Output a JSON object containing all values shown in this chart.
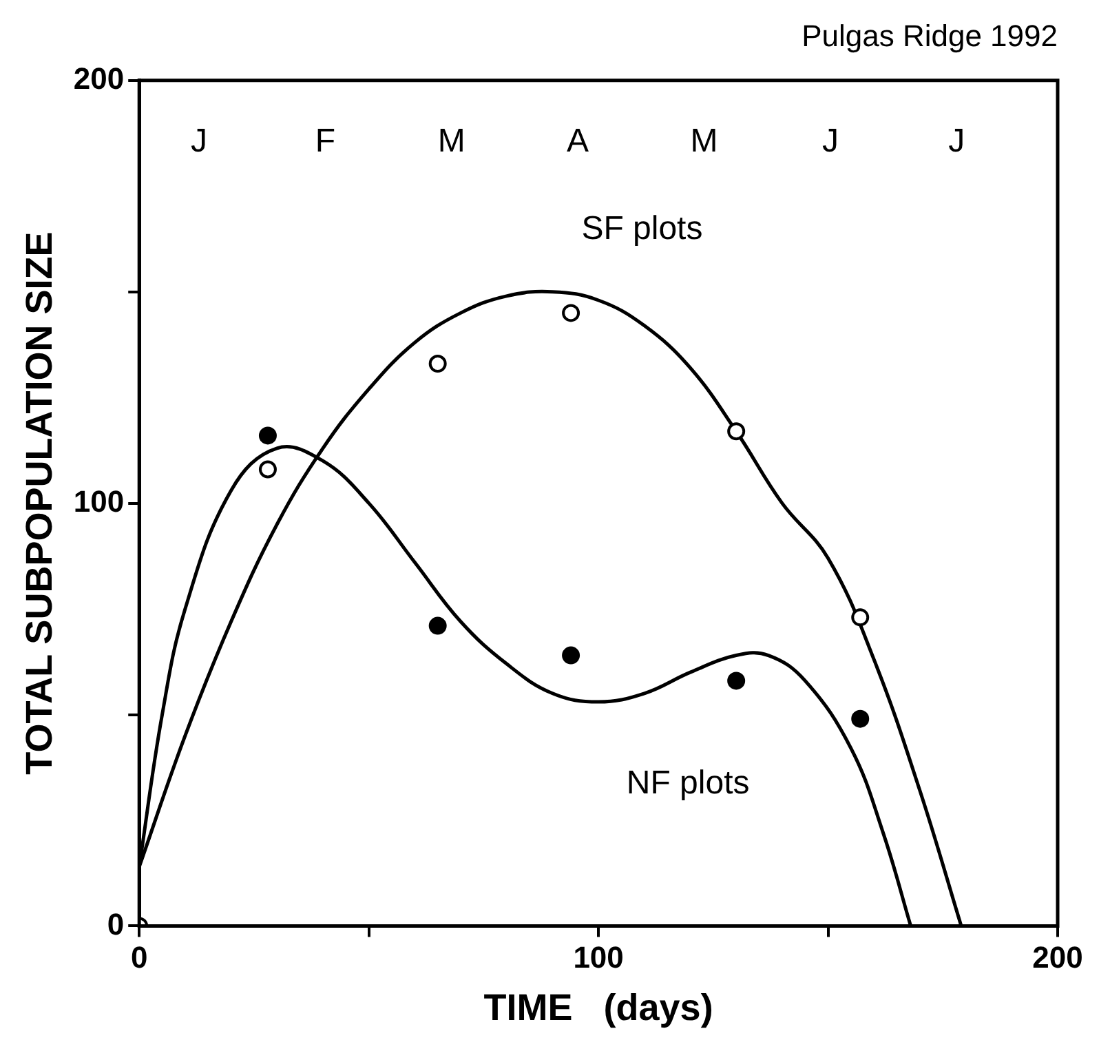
{
  "chart_data": {
    "type": "scatter",
    "title": "Pulgas Ridge 1992",
    "xlabel": "TIME   (days)",
    "ylabel": "TOTAL SUBPOPULATION SIZE",
    "xlim": [
      0,
      200
    ],
    "xticks": [
      0,
      {
        "value": 50,
        "label": null
      },
      100,
      {
        "value": 150,
        "label": null
      },
      200
    ],
    "ylim": [
      0,
      200
    ],
    "yticks": [
      0,
      {
        "value": 50,
        "label": null
      },
      100,
      {
        "value": 150,
        "label": null
      },
      200
    ],
    "annotations": [
      "J",
      "F",
      "M",
      "A",
      "M",
      "J",
      "J"
    ],
    "grid": false,
    "legend": false,
    "series": [
      {
        "type": "line",
        "name": "SF plots",
        "marker": "none",
        "color": "#000000",
        "x": [
          0,
          10,
          20,
          30,
          40,
          50,
          60,
          70,
          80,
          90,
          100,
          110,
          120,
          130,
          140,
          150,
          160,
          170,
          179
        ],
        "values": [
          14,
          45,
          72,
          95,
          113,
          127,
          138,
          145,
          149,
          150,
          148,
          142,
          132,
          117,
          100,
          87,
          63,
          32,
          0
        ]
      },
      {
        "type": "line",
        "name": "NF plots",
        "marker": "none",
        "color": "#000000",
        "x": [
          0,
          5,
          10,
          20,
          30,
          40,
          50,
          60,
          70,
          80,
          90,
          100,
          110,
          120,
          130,
          137,
          145,
          155,
          162,
          168
        ],
        "values": [
          14,
          50,
          75,
          103,
          113,
          110,
          100,
          86,
          72,
          62,
          55,
          53,
          55,
          60,
          64,
          64,
          58,
          42,
          22,
          0
        ]
      },
      {
        "marker": "circle",
        "color": "#000000",
        "x": [
          28,
          65,
          94,
          130,
          157
        ],
        "values": [
          116,
          71,
          64,
          58,
          49
        ]
      },
      {
        "marker": "circle",
        "color": "#ffffff",
        "x": [
          0,
          28,
          65,
          94,
          130,
          157
        ],
        "values": [
          0,
          108,
          133,
          145,
          117,
          73
        ]
      }
    ]
  }
}
